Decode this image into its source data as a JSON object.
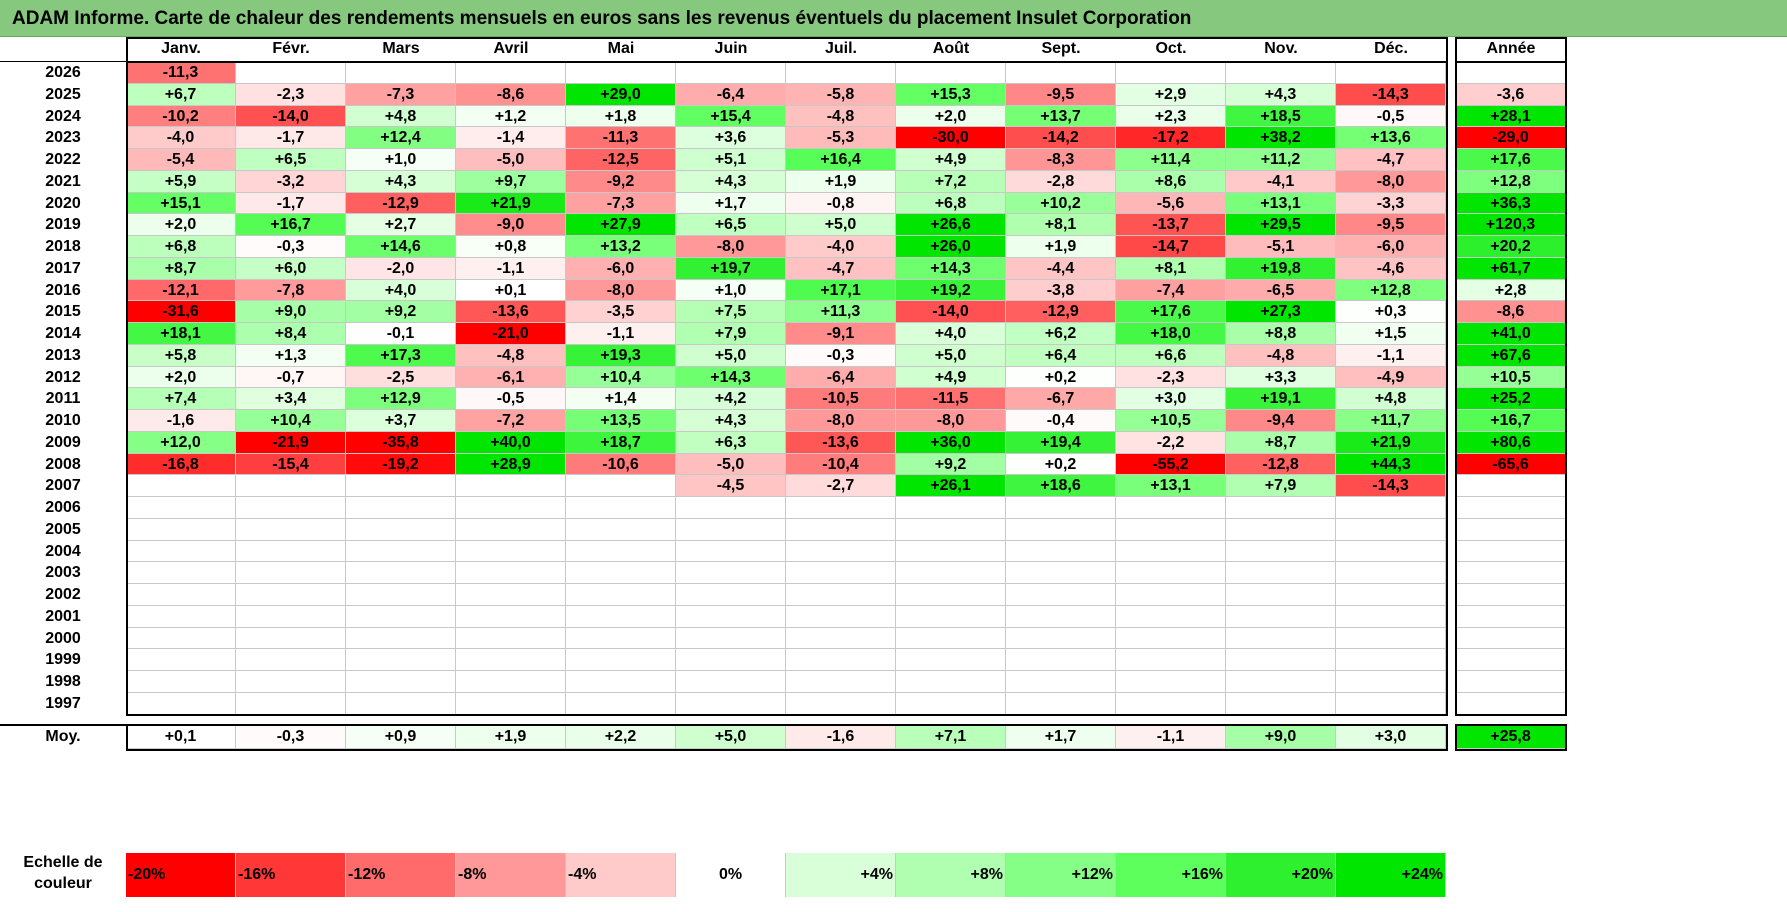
{
  "title": "ADAM Informe. Carte de chaleur des rendements mensuels en euros sans les revenus éventuels du placement Insulet Corporation",
  "chart_data": {
    "type": "heatmap",
    "title": "ADAM Informe. Carte de chaleur des rendements mensuels en euros sans les revenus éventuels du placement Insulet Corporation",
    "months": [
      "Janv.",
      "Févr.",
      "Mars",
      "Avril",
      "Mai",
      "Juin",
      "Juil.",
      "Août",
      "Sept.",
      "Oct.",
      "Nov.",
      "Déc."
    ],
    "year_header": "Année",
    "rows": [
      {
        "year": "2026",
        "values": [
          "-11,3",
          "",
          "",
          "",
          "",
          "",
          "",
          "",
          "",
          "",
          "",
          ""
        ],
        "annual": ""
      },
      {
        "year": "2025",
        "values": [
          "+6,7",
          "-2,3",
          "-7,3",
          "-8,6",
          "+29,0",
          "-6,4",
          "-5,8",
          "+15,3",
          "-9,5",
          "+2,9",
          "+4,3",
          "-14,3"
        ],
        "annual": "-3,6"
      },
      {
        "year": "2024",
        "values": [
          "-10,2",
          "-14,0",
          "+4,8",
          "+1,2",
          "+1,8",
          "+15,4",
          "-4,8",
          "+2,0",
          "+13,7",
          "+2,3",
          "+18,5",
          "-0,5"
        ],
        "annual": "+28,1"
      },
      {
        "year": "2023",
        "values": [
          "-4,0",
          "-1,7",
          "+12,4",
          "-1,4",
          "-11,3",
          "+3,6",
          "-5,3",
          "-30,0",
          "-14,2",
          "-17,2",
          "+38,2",
          "+13,6"
        ],
        "annual": "-29,0"
      },
      {
        "year": "2022",
        "values": [
          "-5,4",
          "+6,5",
          "+1,0",
          "-5,0",
          "-12,5",
          "+5,1",
          "+16,4",
          "+4,9",
          "-8,3",
          "+11,4",
          "+11,2",
          "-4,7"
        ],
        "annual": "+17,6"
      },
      {
        "year": "2021",
        "values": [
          "+5,9",
          "-3,2",
          "+4,3",
          "+9,7",
          "-9,2",
          "+4,3",
          "+1,9",
          "+7,2",
          "-2,8",
          "+8,6",
          "-4,1",
          "-8,0"
        ],
        "annual": "+12,8"
      },
      {
        "year": "2020",
        "values": [
          "+15,1",
          "-1,7",
          "-12,9",
          "+21,9",
          "-7,3",
          "+1,7",
          "-0,8",
          "+6,8",
          "+10,2",
          "-5,6",
          "+13,1",
          "-3,3"
        ],
        "annual": "+36,3"
      },
      {
        "year": "2019",
        "values": [
          "+2,0",
          "+16,7",
          "+2,7",
          "-9,0",
          "+27,9",
          "+6,5",
          "+5,0",
          "+26,6",
          "+8,1",
          "-13,7",
          "+29,5",
          "-9,5"
        ],
        "annual": "+120,3"
      },
      {
        "year": "2018",
        "values": [
          "+6,8",
          "-0,3",
          "+14,6",
          "+0,8",
          "+13,2",
          "-8,0",
          "-4,0",
          "+26,0",
          "+1,9",
          "-14,7",
          "-5,1",
          "-6,0"
        ],
        "annual": "+20,2"
      },
      {
        "year": "2017",
        "values": [
          "+8,7",
          "+6,0",
          "-2,0",
          "-1,1",
          "-6,0",
          "+19,7",
          "-4,7",
          "+14,3",
          "-4,4",
          "+8,1",
          "+19,8",
          "-4,6"
        ],
        "annual": "+61,7"
      },
      {
        "year": "2016",
        "values": [
          "-12,1",
          "-7,8",
          "+4,0",
          "+0,1",
          "-8,0",
          "+1,0",
          "+17,1",
          "+19,2",
          "-3,8",
          "-7,4",
          "-6,5",
          "+12,8"
        ],
        "annual": "+2,8"
      },
      {
        "year": "2015",
        "values": [
          "-31,6",
          "+9,0",
          "+9,2",
          "-13,6",
          "-3,5",
          "+7,5",
          "+11,3",
          "-14,0",
          "-12,9",
          "+17,6",
          "+27,3",
          "+0,3"
        ],
        "annual": "-8,6"
      },
      {
        "year": "2014",
        "values": [
          "+18,1",
          "+8,4",
          "-0,1",
          "-21,0",
          "-1,1",
          "+7,9",
          "-9,1",
          "+4,0",
          "+6,2",
          "+18,0",
          "+8,8",
          "+1,5"
        ],
        "annual": "+41,0"
      },
      {
        "year": "2013",
        "values": [
          "+5,8",
          "+1,3",
          "+17,3",
          "-4,8",
          "+19,3",
          "+5,0",
          "-0,3",
          "+5,0",
          "+6,4",
          "+6,6",
          "-4,8",
          "-1,1"
        ],
        "annual": "+67,6"
      },
      {
        "year": "2012",
        "values": [
          "+2,0",
          "-0,7",
          "-2,5",
          "-6,1",
          "+10,4",
          "+14,3",
          "-6,4",
          "+4,9",
          "+0,2",
          "-2,3",
          "+3,3",
          "-4,9"
        ],
        "annual": "+10,5"
      },
      {
        "year": "2011",
        "values": [
          "+7,4",
          "+3,4",
          "+12,9",
          "-0,5",
          "+1,4",
          "+4,2",
          "-10,5",
          "-11,5",
          "-6,7",
          "+3,0",
          "+19,1",
          "+4,8"
        ],
        "annual": "+25,2"
      },
      {
        "year": "2010",
        "values": [
          "-1,6",
          "+10,4",
          "+3,7",
          "-7,2",
          "+13,5",
          "+4,3",
          "-8,0",
          "-8,0",
          "-0,4",
          "+10,5",
          "-9,4",
          "+11,7"
        ],
        "annual": "+16,7"
      },
      {
        "year": "2009",
        "values": [
          "+12,0",
          "-21,9",
          "-35,8",
          "+40,0",
          "+18,7",
          "+6,3",
          "-13,6",
          "+36,0",
          "+19,4",
          "-2,2",
          "+8,7",
          "+21,9"
        ],
        "annual": "+80,6"
      },
      {
        "year": "2008",
        "values": [
          "-16,8",
          "-15,4",
          "-19,2",
          "+28,9",
          "-10,6",
          "-5,0",
          "-10,4",
          "+9,2",
          "+0,2",
          "-55,2",
          "-12,8",
          "+44,3"
        ],
        "annual": "-65,6"
      },
      {
        "year": "2007",
        "values": [
          "",
          "",
          "",
          "",
          "",
          "-4,5",
          "-2,7",
          "+26,1",
          "+18,6",
          "+13,1",
          "+7,9",
          "-14,3"
        ],
        "annual": ""
      },
      {
        "year": "2006",
        "values": [
          "",
          "",
          "",
          "",
          "",
          "",
          "",
          "",
          "",
          "",
          "",
          ""
        ],
        "annual": ""
      },
      {
        "year": "2005",
        "values": [
          "",
          "",
          "",
          "",
          "",
          "",
          "",
          "",
          "",
          "",
          "",
          ""
        ],
        "annual": ""
      },
      {
        "year": "2004",
        "values": [
          "",
          "",
          "",
          "",
          "",
          "",
          "",
          "",
          "",
          "",
          "",
          ""
        ],
        "annual": ""
      },
      {
        "year": "2003",
        "values": [
          "",
          "",
          "",
          "",
          "",
          "",
          "",
          "",
          "",
          "",
          "",
          ""
        ],
        "annual": ""
      },
      {
        "year": "2002",
        "values": [
          "",
          "",
          "",
          "",
          "",
          "",
          "",
          "",
          "",
          "",
          "",
          ""
        ],
        "annual": ""
      },
      {
        "year": "2001",
        "values": [
          "",
          "",
          "",
          "",
          "",
          "",
          "",
          "",
          "",
          "",
          "",
          ""
        ],
        "annual": ""
      },
      {
        "year": "2000",
        "values": [
          "",
          "",
          "",
          "",
          "",
          "",
          "",
          "",
          "",
          "",
          "",
          ""
        ],
        "annual": ""
      },
      {
        "year": "1999",
        "values": [
          "",
          "",
          "",
          "",
          "",
          "",
          "",
          "",
          "",
          "",
          "",
          ""
        ],
        "annual": ""
      },
      {
        "year": "1998",
        "values": [
          "",
          "",
          "",
          "",
          "",
          "",
          "",
          "",
          "",
          "",
          "",
          ""
        ],
        "annual": ""
      },
      {
        "year": "1997",
        "values": [
          "",
          "",
          "",
          "",
          "",
          "",
          "",
          "",
          "",
          "",
          "",
          ""
        ],
        "annual": ""
      }
    ],
    "average": {
      "label": "Moy.",
      "values": [
        "+0,1",
        "-0,3",
        "+0,9",
        "+1,9",
        "+2,2",
        "+5,0",
        "-1,6",
        "+7,1",
        "+1,7",
        "-1,1",
        "+9,0",
        "+3,0"
      ],
      "annual": "+25,8"
    },
    "color_scale": {
      "label_line1": "Echelle de",
      "label_line2": "couleur",
      "stops": [
        {
          "label": "-20%",
          "value": -20,
          "color": "#ff0000"
        },
        {
          "label": "-16%",
          "value": -16,
          "color": "#ff3737"
        },
        {
          "label": "-12%",
          "value": -12,
          "color": "#ff6a6a"
        },
        {
          "label": "-8%",
          "value": -8,
          "color": "#ff9898"
        },
        {
          "label": "-4%",
          "value": -4,
          "color": "#ffcaca"
        },
        {
          "label": "0%",
          "value": 0,
          "color": "#ffffff"
        },
        {
          "label": "+4%",
          "value": 4,
          "color": "#d9ffd9"
        },
        {
          "label": "+8%",
          "value": 8,
          "color": "#b0ffb0"
        },
        {
          "label": "+12%",
          "value": 12,
          "color": "#86ff86"
        },
        {
          "label": "+16%",
          "value": 16,
          "color": "#5cff5c"
        },
        {
          "label": "+20%",
          "value": 20,
          "color": "#2ff02f"
        },
        {
          "label": "+24%",
          "value": 24,
          "color": "#00e600"
        }
      ]
    }
  }
}
